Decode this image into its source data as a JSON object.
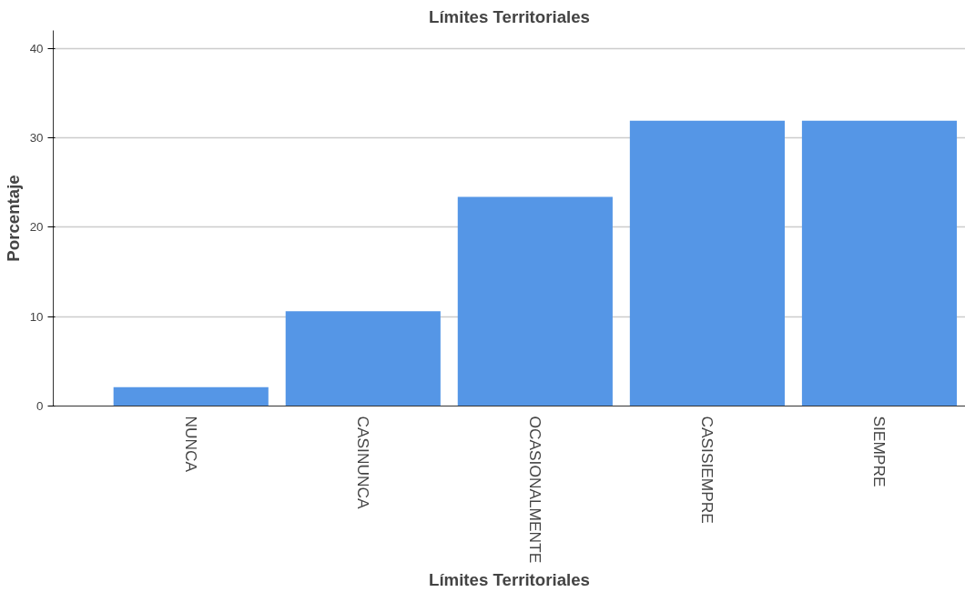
{
  "chart_data": {
    "type": "bar",
    "title": "Límites Territoriales",
    "xlabel": "Límites Territoriales",
    "ylabel": "Porcentaje",
    "categories": [
      "NUNCA",
      "CASINUNCA",
      "OCASIONALMENTE",
      "CASISIEMPRE",
      "SIEMPRE"
    ],
    "values": [
      2.1,
      10.6,
      23.4,
      31.9,
      31.9
    ],
    "color": "#5596e6",
    "ylim": [
      0,
      42
    ],
    "yticks": [
      0,
      10,
      20,
      30,
      40
    ],
    "grid": "y"
  }
}
